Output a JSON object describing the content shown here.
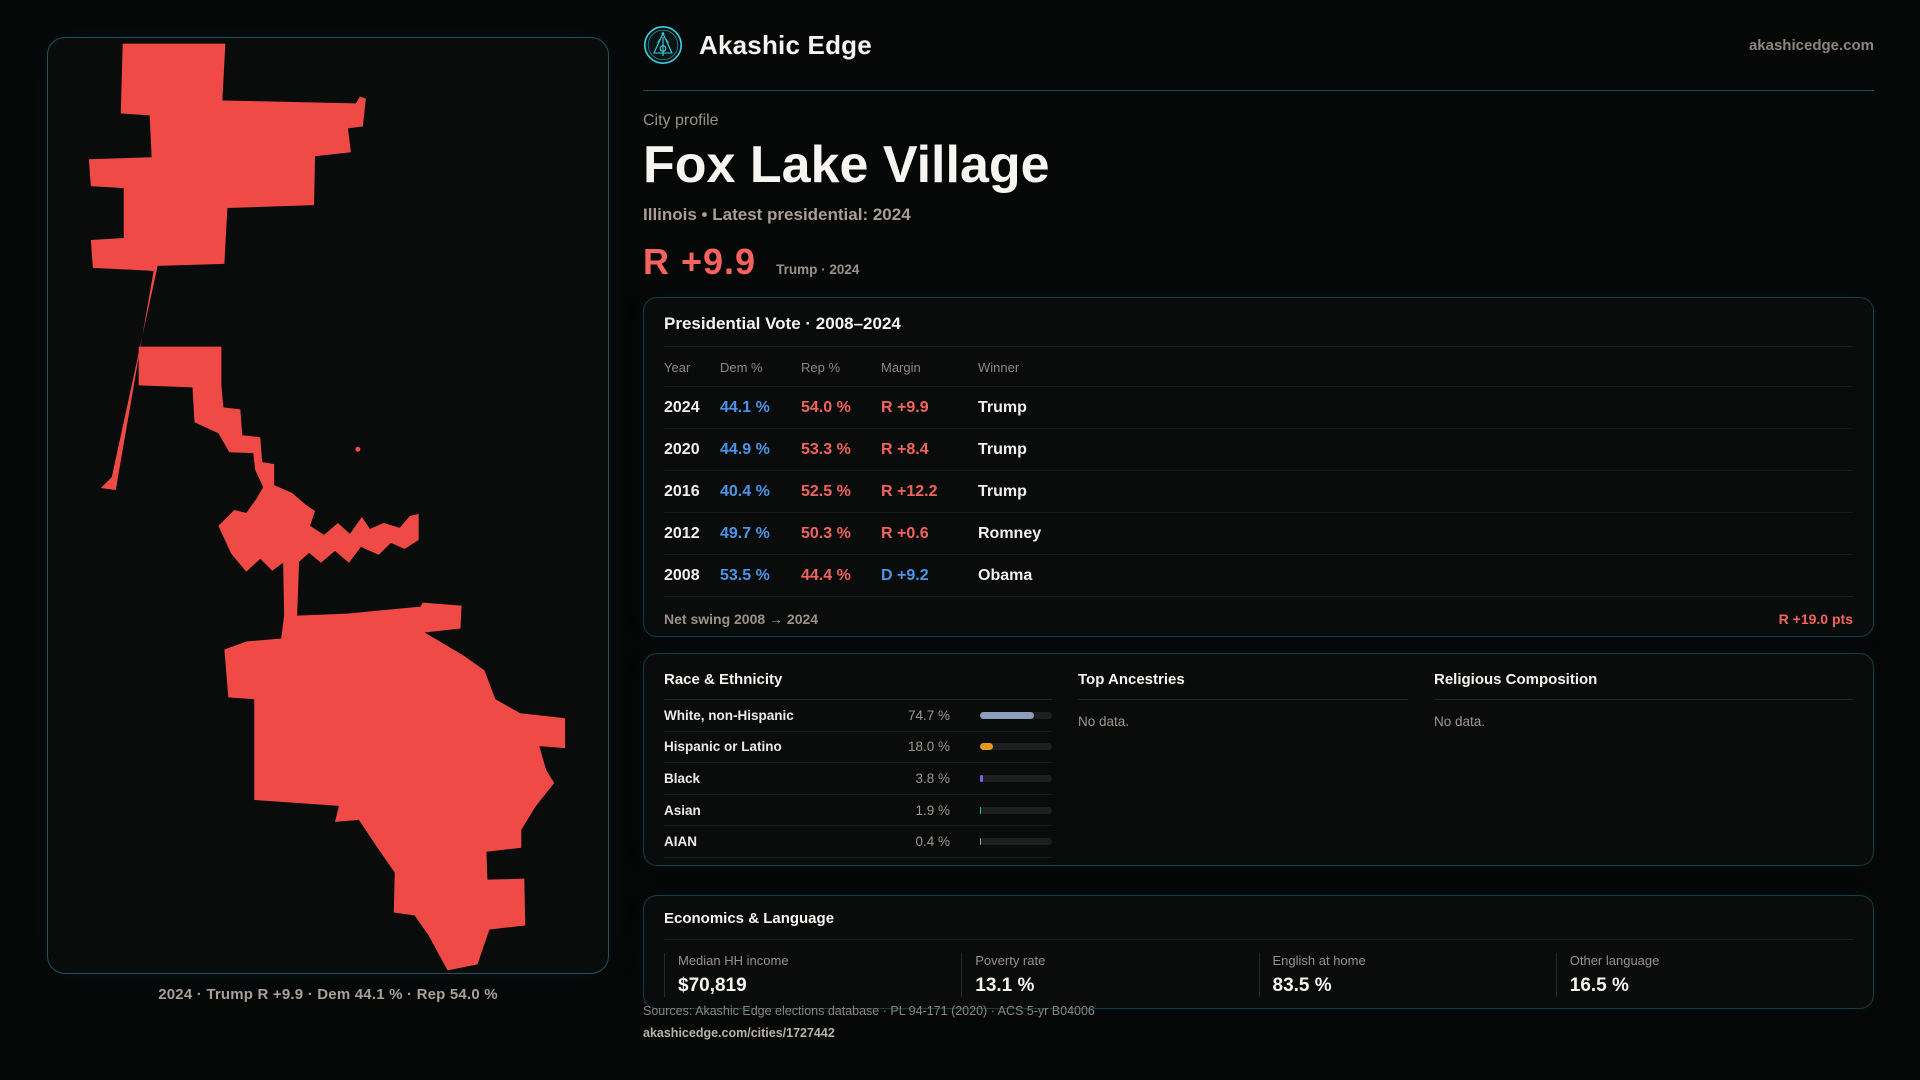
{
  "brand": {
    "name": "Akashic Edge",
    "domain": "akashicedge.com"
  },
  "profile": {
    "kicker": "City profile",
    "title": "Fox Lake Village",
    "subtitle": "Illinois • Latest presidential: 2024",
    "margin_value": "R +9.9",
    "margin_context": "Trump · 2024"
  },
  "map": {
    "caption": "2024 · Trump R +9.9 · Dem 44.1 % · Rep 54.0 %",
    "fill_color": "#ef4a45"
  },
  "vote_table": {
    "title": "Presidential Vote · 2008–2024",
    "columns": [
      "Year",
      "Dem %",
      "Rep %",
      "Margin",
      "Winner"
    ],
    "rows": [
      {
        "year": "2024",
        "dem": "44.1 %",
        "rep": "54.0 %",
        "margin": "R +9.9",
        "margin_party": "R",
        "winner": "Trump"
      },
      {
        "year": "2020",
        "dem": "44.9 %",
        "rep": "53.3 %",
        "margin": "R +8.4",
        "margin_party": "R",
        "winner": "Trump"
      },
      {
        "year": "2016",
        "dem": "40.4 %",
        "rep": "52.5 %",
        "margin": "R +12.2",
        "margin_party": "R",
        "winner": "Trump"
      },
      {
        "year": "2012",
        "dem": "49.7 %",
        "rep": "50.3 %",
        "margin": "R +0.6",
        "margin_party": "R",
        "winner": "Romney"
      },
      {
        "year": "2008",
        "dem": "53.5 %",
        "rep": "44.4 %",
        "margin": "D +9.2",
        "margin_party": "D",
        "winner": "Obama"
      }
    ],
    "footer_label": "Net swing 2008 → 2024",
    "footer_value": "R +19.0 pts"
  },
  "race": {
    "title": "Race & Ethnicity",
    "rows": [
      {
        "label": "White, non-Hispanic",
        "value": "74.7 %",
        "pct": 74.7,
        "color": "#8ba0bd"
      },
      {
        "label": "Hispanic or Latino",
        "value": "18.0 %",
        "pct": 18.0,
        "color": "#e5991c"
      },
      {
        "label": "Black",
        "value": "3.8 %",
        "pct": 3.8,
        "color": "#8a5be6"
      },
      {
        "label": "Asian",
        "value": "1.9 %",
        "pct": 1.9,
        "color": "#1fc998"
      },
      {
        "label": "AIAN",
        "value": "0.4 %",
        "pct": 0.4,
        "color": "#9aa3ad"
      }
    ]
  },
  "ancestries": {
    "title": "Top Ancestries",
    "empty": "No data."
  },
  "religion": {
    "title": "Religious Composition",
    "empty": "No data."
  },
  "economics": {
    "title": "Economics & Language",
    "stats": [
      {
        "label": "Median HH income",
        "value": "$70,819"
      },
      {
        "label": "Poverty rate",
        "value": "13.1 %"
      },
      {
        "label": "English at home",
        "value": "83.5 %"
      },
      {
        "label": "Other language",
        "value": "16.5 %"
      }
    ]
  },
  "footer": {
    "sources": "Sources: Akashic Edge elections database · PL 94-171 (2020) · ACS 5-yr B04006",
    "url": "akashicedge.com/cities/1727442"
  }
}
